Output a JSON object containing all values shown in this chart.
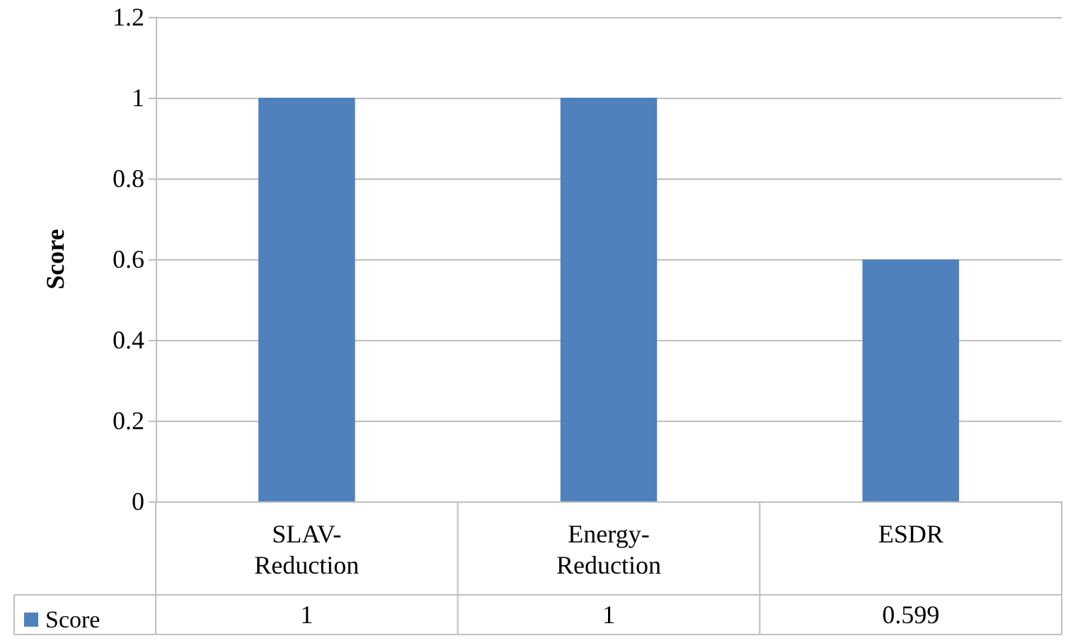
{
  "chart_data": {
    "type": "bar",
    "ylabel": "Score",
    "categories": [
      "SLAV-Reduction",
      "Energy-Reduction",
      "ESDR"
    ],
    "series": [
      {
        "name": "Score",
        "color": "#4f81bd",
        "values": [
          1,
          1,
          0.599
        ]
      }
    ],
    "ylim": [
      0,
      1.2
    ],
    "yticks": [
      0,
      0.2,
      0.4,
      0.6,
      0.8,
      1,
      1.2
    ],
    "grid": "y",
    "legend": "bottom left",
    "data_labels": true
  }
}
